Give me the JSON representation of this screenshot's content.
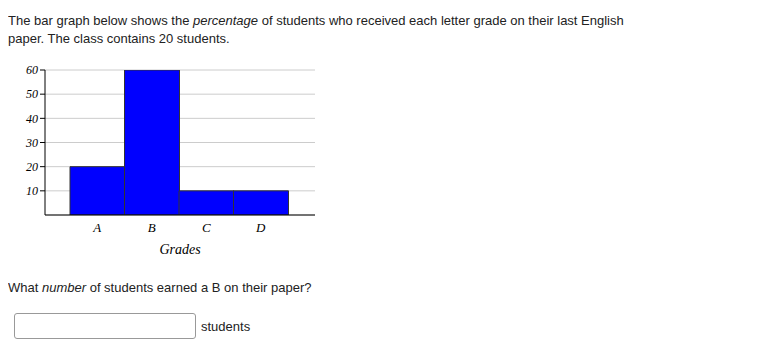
{
  "intro_lines": [
    [
      {
        "text": "The bar graph below shows the "
      },
      {
        "text": "percentage",
        "italic": true
      },
      {
        "text": " of students who received each letter grade on their last English"
      }
    ],
    [
      {
        "text": "paper. The class contains 20 students."
      }
    ]
  ],
  "chart_data": {
    "type": "bar",
    "categories": [
      "A",
      "B",
      "C",
      "D"
    ],
    "values": [
      20,
      60,
      10,
      10
    ],
    "color": "#0000ff",
    "xlabel": "Grades",
    "ylim": [
      0,
      60
    ],
    "yticks": [
      10,
      20,
      30,
      40,
      50,
      60
    ],
    "grid": true
  },
  "question": [
    {
      "text": "What "
    },
    {
      "text": "number",
      "italic": true
    },
    {
      "text": " of students earned a B on their paper?"
    }
  ],
  "answer_unit": "students"
}
